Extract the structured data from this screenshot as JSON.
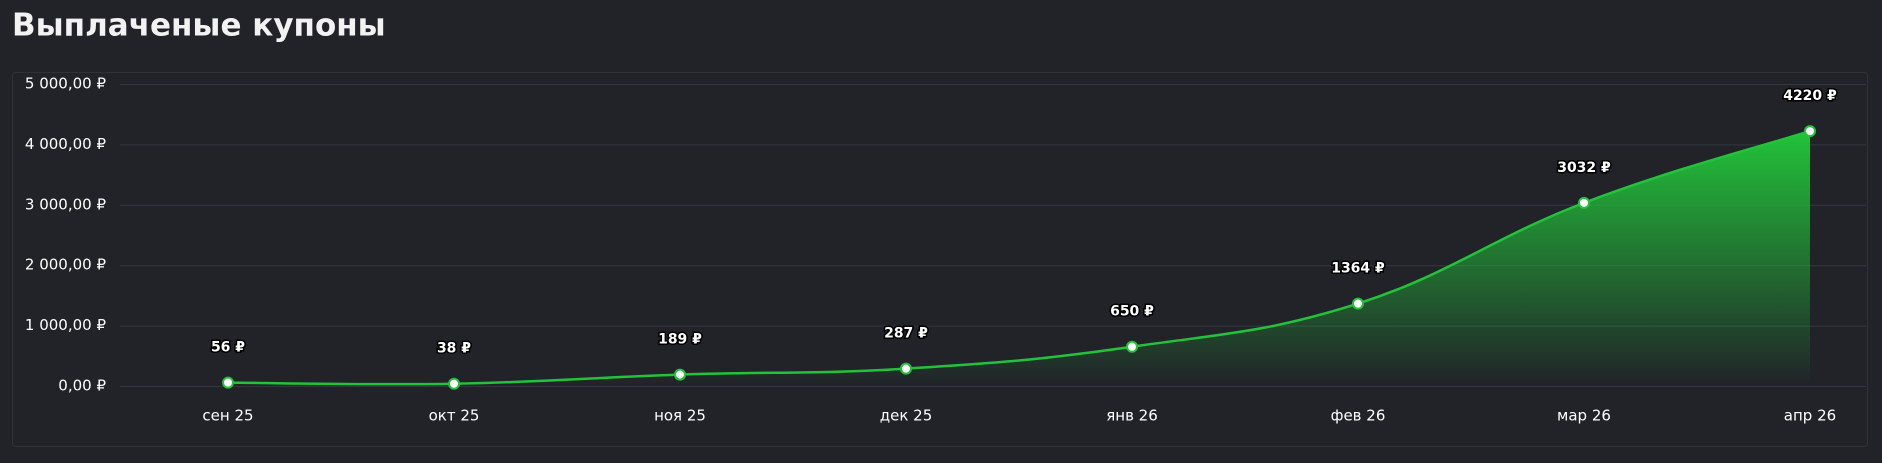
{
  "chart_data": {
    "type": "area",
    "title": "Выплаченые купоны",
    "categories": [
      "сен 25",
      "окт 25",
      "ноя 25",
      "дек 25",
      "янв 26",
      "фев 26",
      "мар 26",
      "апр 26"
    ],
    "series": [
      {
        "color": "#22c33a",
        "values": [
          56,
          38,
          189,
          287,
          650,
          1364,
          3032,
          4220
        ],
        "value_labels": [
          "56 ₽",
          "38 ₽",
          "189 ₽",
          "287 ₽",
          "650 ₽",
          "1364 ₽",
          "3032 ₽",
          "4220 ₽"
        ]
      }
    ],
    "ylim": [
      0,
      5000
    ],
    "yticks": [
      {
        "value": 0,
        "label": "0,00 ₽"
      },
      {
        "value": 1000,
        "label": "1 000,00 ₽"
      },
      {
        "value": 2000,
        "label": "2 000,00 ₽"
      },
      {
        "value": 3000,
        "label": "3 000,00 ₽"
      },
      {
        "value": 4000,
        "label": "4 000,00 ₽"
      },
      {
        "value": 5000,
        "label": "5 000,00 ₽"
      }
    ],
    "grid": true
  }
}
